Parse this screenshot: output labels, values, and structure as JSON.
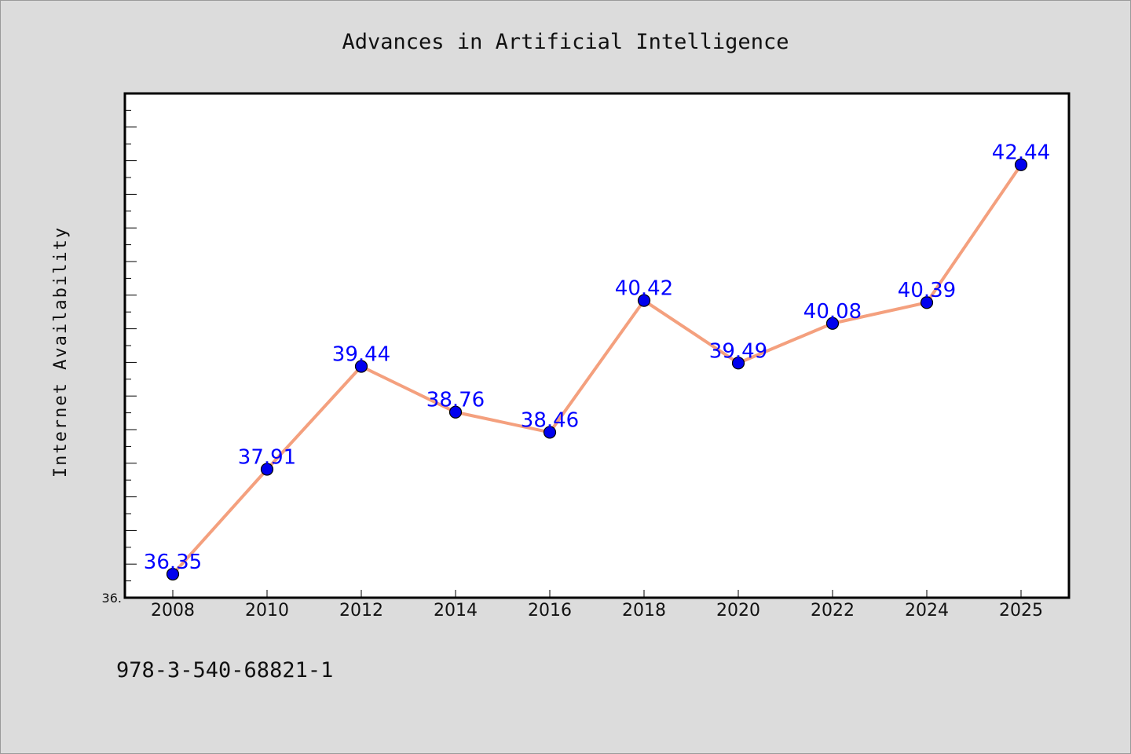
{
  "chart_data": {
    "type": "line",
    "title": "Advances in Artificial Intelligence",
    "xlabel": "",
    "ylabel": "Internet Availability",
    "categories": [
      "2008",
      "2010",
      "2012",
      "2014",
      "2016",
      "2018",
      "2020",
      "2022",
      "2024",
      "2025"
    ],
    "series": [
      {
        "values": [
          36.35,
          37.91,
          39.44,
          38.76,
          38.46,
          40.42,
          39.49,
          40.08,
          40.39,
          42.44
        ],
        "labels": [
          "36.35",
          "37.91",
          "39.44",
          "38.76",
          "38.46",
          "40.42",
          "39.49",
          "40.08",
          "40.39",
          "42.44"
        ]
      }
    ],
    "ylim": [
      36.0,
      43.5
    ],
    "y_min_label": "36.",
    "grid": false,
    "legend": "none",
    "colors": {
      "line": "#f4a07e",
      "marker": "#0000ee",
      "label": "#0000ff",
      "background": "#dcdcdc",
      "plot_bg": "#ffffff"
    }
  },
  "footer": {
    "isbn": "978-3-540-68821-1"
  }
}
